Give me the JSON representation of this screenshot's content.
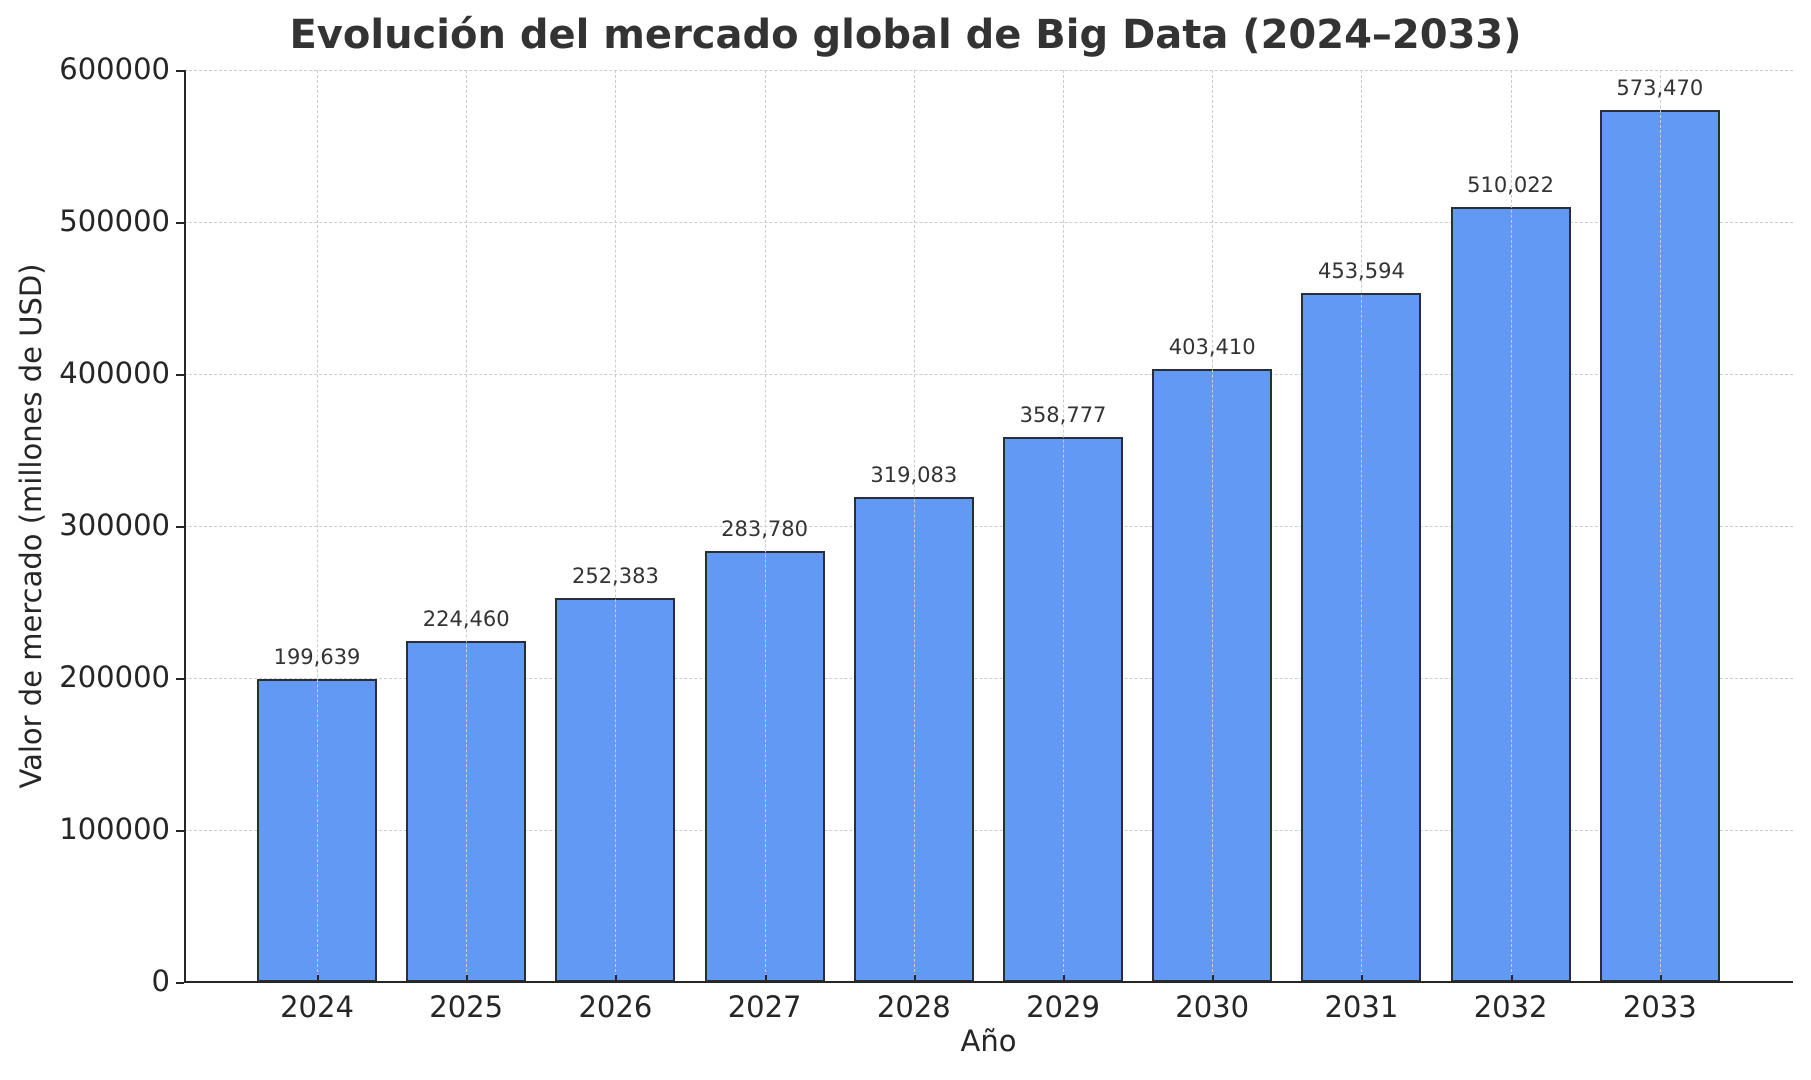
{
  "chart_data": {
    "type": "bar",
    "title": "Evolución del mercado global de Big Data (2024–2033)",
    "xlabel": "Año",
    "ylabel": "Valor de mercado (millones de USD)",
    "categories": [
      "2024",
      "2025",
      "2026",
      "2027",
      "2028",
      "2029",
      "2030",
      "2031",
      "2032",
      "2033"
    ],
    "values": [
      199639,
      224460,
      252383,
      283780,
      319083,
      358777,
      403410,
      453594,
      510022,
      573470
    ],
    "value_labels": [
      "199,639",
      "224,460",
      "252,383",
      "283,780",
      "319,083",
      "358,777",
      "403,410",
      "453,594",
      "510,022",
      "573,470"
    ],
    "ylim": [
      0,
      600000
    ],
    "yticks": [
      "0",
      "100000",
      "200000",
      "300000",
      "400000",
      "500000",
      "600000"
    ],
    "grid": true,
    "grid_style": "dashed",
    "legend": null,
    "colors": {
      "bar_fill": "#6199f5",
      "bar_edge": "#2a2f36",
      "grid": "#cccccc",
      "text": "#333333"
    }
  }
}
